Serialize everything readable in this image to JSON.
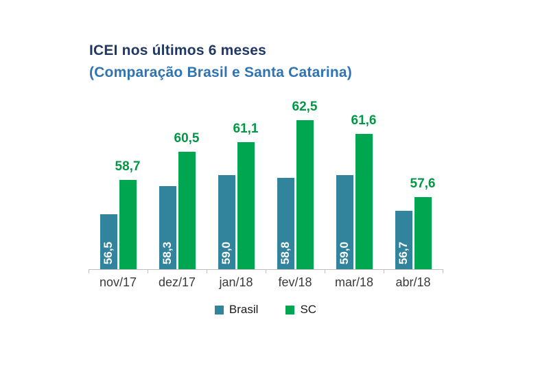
{
  "header": {
    "title": "ICEI nos últimos 6 meses",
    "subtitle": "(Comparação Brasil e Santa Catarina)",
    "title_color": "#1F3864",
    "subtitle_color": "#2E74B5"
  },
  "chart_data": {
    "type": "bar",
    "title": "ICEI nos últimos 6 meses (Comparação Brasil e Santa Catarina)",
    "categories": [
      "nov/17",
      "dez/17",
      "jan/18",
      "fev/18",
      "mar/18",
      "abr/18"
    ],
    "series": [
      {
        "name": "Brasil",
        "color": "#31849B",
        "label_color": "#FFFFFF",
        "label_position": "inside-vertical",
        "values": [
          56.5,
          58.3,
          59.0,
          58.8,
          59.0,
          56.7
        ],
        "labels": [
          "56,5",
          "58,3",
          "59,0",
          "58,8",
          "59,0",
          "56,7"
        ]
      },
      {
        "name": "SC",
        "color": "#00A650",
        "label_color": "#009845",
        "label_position": "above",
        "values": [
          58.7,
          60.5,
          61.1,
          62.5,
          61.6,
          57.6
        ],
        "labels": [
          "58,7",
          "60,5",
          "61,1",
          "62,5",
          "61,6",
          "57,6"
        ]
      }
    ],
    "xlabel": "",
    "ylabel": "",
    "ylim": [
      53,
      63.5
    ],
    "grid": false,
    "y_axis_visible": false,
    "legend_position": "bottom",
    "axis_color": "#BFBFBF"
  },
  "legend": {
    "items": [
      {
        "label": "Brasil",
        "color": "#31849B"
      },
      {
        "label": "SC",
        "color": "#00A650"
      }
    ]
  }
}
